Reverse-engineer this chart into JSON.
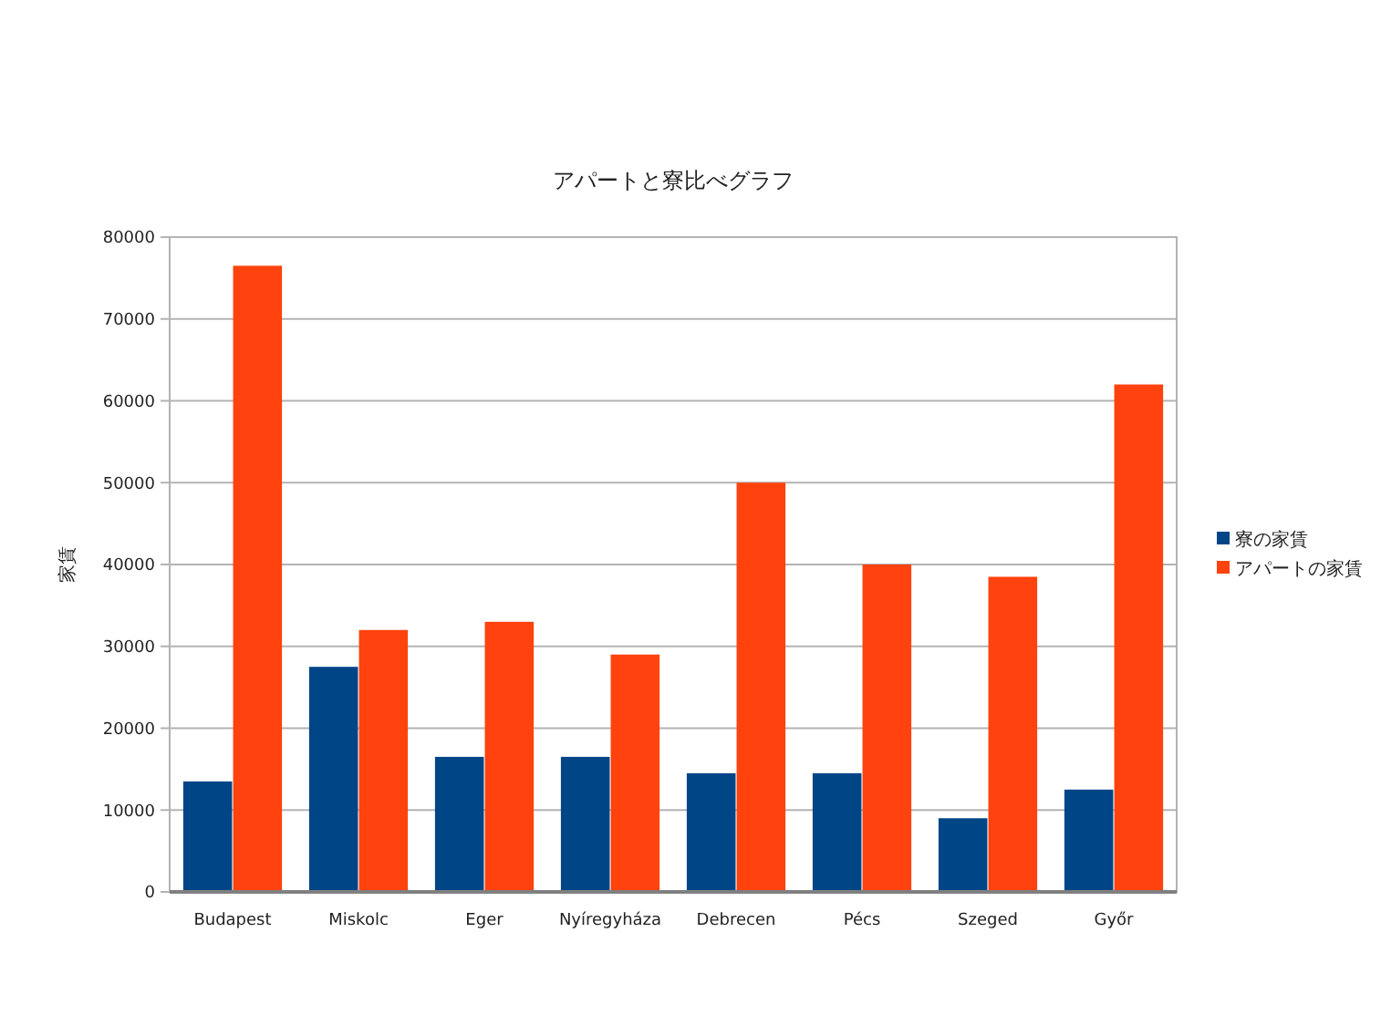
{
  "chart_data": {
    "type": "bar",
    "title": "アパートと寮比べグラフ",
    "ylabel": "家賃",
    "categories": [
      "Budapest",
      "Miskolc",
      "Eger",
      "Nyíregyháza",
      "Debrecen",
      "Pécs",
      "Szeged",
      "Győr"
    ],
    "series": [
      {
        "name": "寮の家賃",
        "color": "#004586",
        "values": [
          13500,
          27500,
          16500,
          16500,
          14500,
          14500,
          9000,
          12500
        ]
      },
      {
        "name": "アパートの家賃",
        "color": "#ff420e",
        "values": [
          76500,
          32000,
          33000,
          29000,
          50000,
          40000,
          38500,
          62000
        ]
      }
    ],
    "ylim": [
      0,
      80000
    ],
    "yticks": [
      0,
      10000,
      20000,
      30000,
      40000,
      50000,
      60000,
      70000,
      80000
    ],
    "grid": "y",
    "legend": "right"
  }
}
